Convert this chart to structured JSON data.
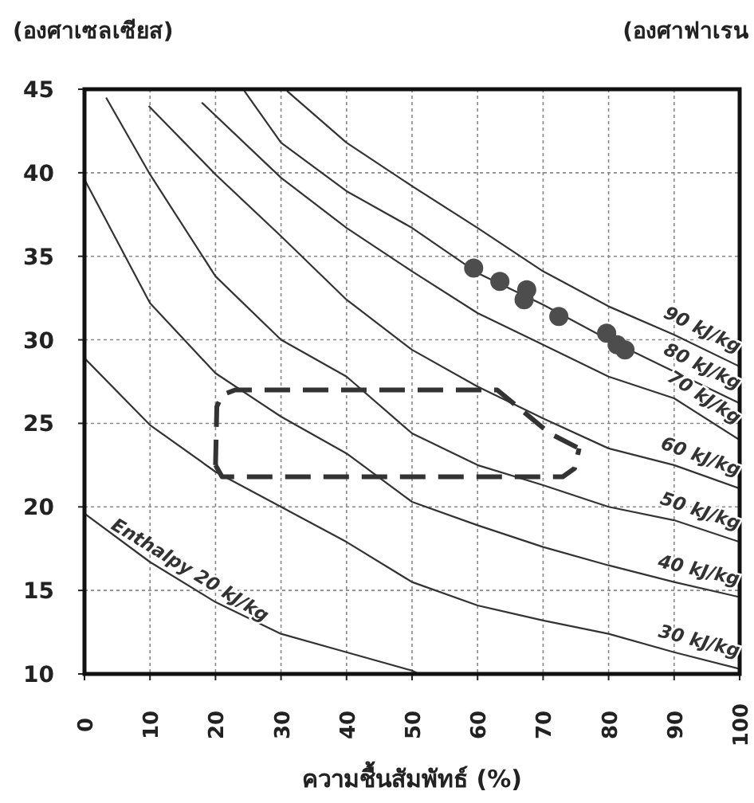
{
  "chart_data": {
    "type": "line",
    "ylabel": "(องศาเซลเซียส)",
    "y2label": "(องศาฟาเรน",
    "xlabel": "ความชื้นสัมพัทธ์ (%)",
    "xlim": [
      0,
      100
    ],
    "ylim": [
      10,
      45
    ],
    "xticks": [
      0,
      10,
      20,
      30,
      40,
      50,
      60,
      70,
      80,
      90,
      100
    ],
    "yticks": [
      10,
      15,
      20,
      25,
      30,
      35,
      40,
      45
    ],
    "grid": true,
    "series": [
      {
        "name": "Enthalpy 20 kJ/kg",
        "color": "#333333",
        "x": [
          0,
          10,
          20,
          30,
          40,
          50,
          51
        ],
        "values": [
          19.6,
          16.7,
          14.3,
          12.4,
          11.3,
          10.2,
          10
        ]
      },
      {
        "name": "30 kJ/kg",
        "color": "#333333",
        "x": [
          0,
          10,
          20,
          30,
          40,
          50,
          60,
          70,
          80,
          90,
          100
        ],
        "values": [
          28.9,
          24.9,
          22.1,
          20.0,
          17.9,
          15.5,
          14.1,
          13.2,
          12.4,
          11.3,
          10.3
        ]
      },
      {
        "name": "40 kJ/kg",
        "color": "#333333",
        "x": [
          0,
          10,
          20,
          30,
          40,
          50,
          60,
          70,
          80,
          90,
          100
        ],
        "values": [
          39.6,
          32.2,
          28.0,
          25.4,
          23.2,
          20.3,
          18.9,
          17.6,
          16.5,
          15.5,
          14.6
        ]
      },
      {
        "name": "50 kJ/kg",
        "color": "#333333",
        "x": [
          3.3,
          10,
          20,
          30,
          40,
          50,
          60,
          70,
          80,
          90,
          100
        ],
        "values": [
          44.5,
          39.9,
          33.8,
          30.0,
          27.8,
          24.4,
          22.5,
          21.3,
          20.0,
          19.2,
          17.9
        ]
      },
      {
        "name": "60 kJ/kg",
        "color": "#333333",
        "x": [
          9.8,
          20,
          30,
          40,
          50,
          60,
          70,
          80,
          90,
          100
        ],
        "values": [
          44.0,
          39.9,
          36.2,
          32.4,
          29.4,
          27.2,
          25.3,
          23.5,
          22.5,
          21.1
        ]
      },
      {
        "name": "70 kJ/kg",
        "color": "#333333",
        "x": [
          17.9,
          30,
          40,
          50,
          60,
          70,
          80,
          90,
          100
        ],
        "values": [
          44.2,
          39.7,
          36.7,
          34.1,
          31.6,
          29.7,
          27.8,
          26.5,
          24.0
        ]
      },
      {
        "name": "80 kJ/kg",
        "color": "#333333",
        "x": [
          24.4,
          30,
          40,
          50,
          60,
          70,
          80,
          90,
          100
        ],
        "values": [
          44.9,
          41.8,
          38.9,
          36.7,
          34.0,
          32.1,
          30.0,
          28.1,
          26.2
        ]
      },
      {
        "name": "90 kJ/kg",
        "color": "#333333",
        "x": [
          30.9,
          40,
          50,
          60,
          70,
          80,
          90,
          100
        ],
        "values": [
          44.9,
          41.8,
          39.2,
          36.7,
          34.1,
          32.0,
          30.3,
          28.4
        ]
      },
      {
        "color": "#333333",
        "line_style": "dashed",
        "x": [
          20,
          20.2,
          21,
          23,
          63,
          71,
          75.5
        ],
        "values": [
          22.5,
          26,
          26.7,
          27,
          27,
          24.4,
          23.5
        ]
      },
      {
        "color": "#333333",
        "line_style": "dashed",
        "x": [
          20,
          21,
          73,
          74.8,
          75.5
        ],
        "values": [
          22.5,
          21.8,
          21.8,
          22.3,
          23.5
        ]
      },
      {
        "type": "scatter",
        "marker": "circle",
        "color": "#4d4d4d",
        "x": [
          59.4,
          63.4,
          67.5,
          67.1,
          72.4,
          79.7,
          81.3,
          82.5
        ],
        "values": [
          34.3,
          33.5,
          33.0,
          32.4,
          31.4,
          30.4,
          29.7,
          29.4
        ]
      }
    ]
  }
}
